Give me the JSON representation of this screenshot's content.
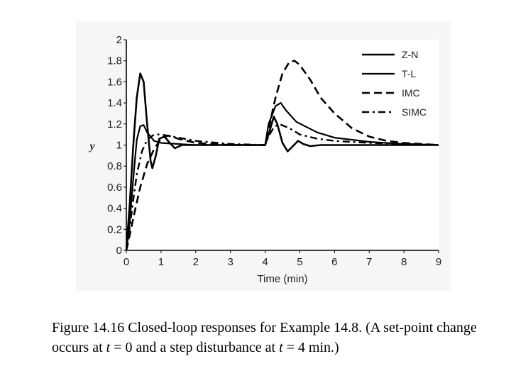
{
  "chart_data": {
    "type": "line",
    "xlabel": "Time (min)",
    "ylabel": "y",
    "xlim": [
      0,
      9
    ],
    "ylim": [
      0,
      2
    ],
    "xticks": [
      "0",
      "1",
      "2",
      "3",
      "4",
      "5",
      "6",
      "7",
      "8",
      "9"
    ],
    "yticks": [
      "0",
      "0.2",
      "0.4",
      "0.6",
      "0.8",
      "1",
      "1.2",
      "1.4",
      "1.6",
      "1.8",
      "2"
    ],
    "grid": false,
    "legend_position": "top-right",
    "series": [
      {
        "name": "Z-N",
        "style": "solid-bold",
        "points": [
          [
            0,
            0
          ],
          [
            0.1,
            0.45
          ],
          [
            0.2,
            1.0
          ],
          [
            0.3,
            1.45
          ],
          [
            0.4,
            1.68
          ],
          [
            0.5,
            1.6
          ],
          [
            0.6,
            1.2
          ],
          [
            0.7,
            0.85
          ],
          [
            0.75,
            0.78
          ],
          [
            0.85,
            0.9
          ],
          [
            0.95,
            1.06
          ],
          [
            1.1,
            1.08
          ],
          [
            1.25,
            1.02
          ],
          [
            1.4,
            0.97
          ],
          [
            1.6,
            1.0
          ],
          [
            2.0,
            1.0
          ],
          [
            4.0,
            1.0
          ],
          [
            4.1,
            1.1
          ],
          [
            4.25,
            1.27
          ],
          [
            4.35,
            1.2
          ],
          [
            4.5,
            1.02
          ],
          [
            4.65,
            0.94
          ],
          [
            4.8,
            0.99
          ],
          [
            4.95,
            1.04
          ],
          [
            5.1,
            1.01
          ],
          [
            5.3,
            0.99
          ],
          [
            5.6,
            1.0
          ],
          [
            9.0,
            1.0
          ]
        ]
      },
      {
        "name": "T-L",
        "style": "solid",
        "points": [
          [
            0,
            0
          ],
          [
            0.1,
            0.28
          ],
          [
            0.2,
            0.68
          ],
          [
            0.3,
            1.05
          ],
          [
            0.4,
            1.18
          ],
          [
            0.5,
            1.19
          ],
          [
            0.6,
            1.12
          ],
          [
            0.8,
            1.04
          ],
          [
            1.0,
            1.02
          ],
          [
            1.5,
            1.01
          ],
          [
            2.0,
            1.0
          ],
          [
            4.0,
            1.0
          ],
          [
            4.1,
            1.2
          ],
          [
            4.3,
            1.37
          ],
          [
            4.45,
            1.4
          ],
          [
            4.6,
            1.33
          ],
          [
            4.9,
            1.22
          ],
          [
            5.5,
            1.12
          ],
          [
            6.0,
            1.07
          ],
          [
            7.0,
            1.03
          ],
          [
            8.0,
            1.01
          ],
          [
            9.0,
            1.0
          ]
        ]
      },
      {
        "name": "IMC",
        "style": "dashed",
        "points": [
          [
            0,
            0
          ],
          [
            0.1,
            0.15
          ],
          [
            0.25,
            0.38
          ],
          [
            0.4,
            0.6
          ],
          [
            0.6,
            0.82
          ],
          [
            0.8,
            0.96
          ],
          [
            1.0,
            1.06
          ],
          [
            1.2,
            1.09
          ],
          [
            1.5,
            1.06
          ],
          [
            2.0,
            1.02
          ],
          [
            3.0,
            1.0
          ],
          [
            4.0,
            1.0
          ],
          [
            4.1,
            1.15
          ],
          [
            4.3,
            1.45
          ],
          [
            4.5,
            1.68
          ],
          [
            4.7,
            1.79
          ],
          [
            4.85,
            1.8
          ],
          [
            5.0,
            1.76
          ],
          [
            5.3,
            1.62
          ],
          [
            5.6,
            1.45
          ],
          [
            6.0,
            1.3
          ],
          [
            6.5,
            1.16
          ],
          [
            7.0,
            1.08
          ],
          [
            7.5,
            1.04
          ],
          [
            8.0,
            1.02
          ],
          [
            9.0,
            1.0
          ]
        ]
      },
      {
        "name": "SIMC",
        "style": "dash-dot",
        "points": [
          [
            0,
            0
          ],
          [
            0.1,
            0.22
          ],
          [
            0.2,
            0.48
          ],
          [
            0.3,
            0.72
          ],
          [
            0.45,
            0.94
          ],
          [
            0.6,
            1.05
          ],
          [
            0.8,
            1.1
          ],
          [
            1.0,
            1.1
          ],
          [
            1.5,
            1.07
          ],
          [
            2.0,
            1.04
          ],
          [
            3.0,
            1.01
          ],
          [
            4.0,
            1.0
          ],
          [
            4.1,
            1.08
          ],
          [
            4.25,
            1.17
          ],
          [
            4.4,
            1.2
          ],
          [
            4.7,
            1.16
          ],
          [
            5.0,
            1.1
          ],
          [
            5.5,
            1.06
          ],
          [
            6.0,
            1.04
          ],
          [
            7.0,
            1.02
          ],
          [
            8.0,
            1.01
          ],
          [
            9.0,
            1.0
          ]
        ]
      }
    ]
  },
  "caption": {
    "prefix": "Figure 14.16 Closed-loop responses for Example 14.8. (A set-point change occurs at ",
    "t1": "t",
    "mid": " = 0 and a step disturbance at ",
    "t2": "t",
    "suffix": " = 4 min.)"
  }
}
